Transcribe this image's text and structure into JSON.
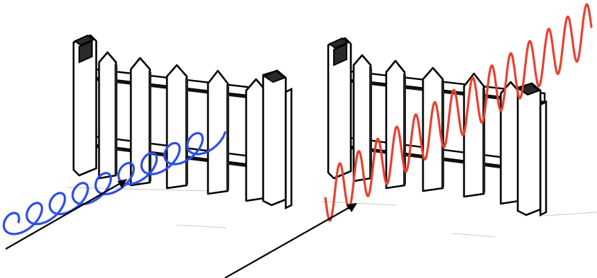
{
  "scenes": [
    {
      "id": "left",
      "wave_color": "#2e4ee6",
      "wave_orientation": "horizontal",
      "passes_fence": false
    },
    {
      "id": "right",
      "wave_color": "#e8412f",
      "wave_orientation": "vertical",
      "passes_fence": true
    }
  ],
  "colors": {
    "fence_stroke": "#000000",
    "fence_fill": "#ffffff",
    "background": "#ffffff",
    "arrow": "#000000"
  }
}
